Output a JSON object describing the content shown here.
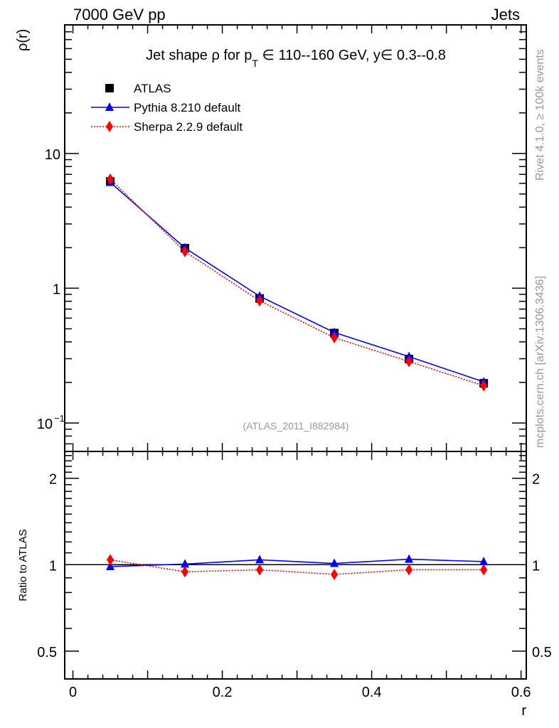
{
  "header": {
    "left": "7000 GeV pp",
    "right": "Jets"
  },
  "side_text": {
    "rivet": "Rivet 4.1.0, ≥ 100k events",
    "mcplots": "mcplots.cern.ch [arXiv:1306.3436]"
  },
  "watermark": "(ATLAS_2011_I882984)",
  "chart_data": [
    {
      "type": "scatter",
      "panel": "main",
      "title": "Jet shape ρ for p_T ∈ 110--160 GeV, y∈ 0.3--0.8",
      "title_parts": {
        "a": "Jet shape ρ for p",
        "sub": "T",
        "b": " ∈ 110--160 GeV, y∈ 0.3--0.8"
      },
      "ylabel": "ρ(r)",
      "xlabel": "r",
      "yscale": "log",
      "xlim": [
        -0.011,
        0.607
      ],
      "ylim": [
        0.0615,
        90
      ],
      "x_ticks": [
        "0",
        "0.2",
        "0.4",
        "0.6"
      ],
      "y_ticks": [
        {
          "value": 10,
          "label": "10"
        },
        {
          "value": 1,
          "label": "1"
        },
        {
          "value": 0.1,
          "label": "10",
          "sup": "−1"
        }
      ],
      "legend_position": "top-left",
      "x": [
        0.05,
        0.15,
        0.25,
        0.35,
        0.45,
        0.55
      ],
      "series": [
        {
          "name": "ATLAS",
          "color": "#000000",
          "marker": "square",
          "values": [
            6.2,
            1.98,
            0.84,
            0.465,
            0.298,
            0.197
          ]
        },
        {
          "name": "Pythia 8.210 default",
          "color": "#0000ff",
          "marker": "triangle",
          "line": "solid",
          "values": [
            6.1,
            1.99,
            0.873,
            0.47,
            0.311,
            0.202
          ]
        },
        {
          "name": "Sherpa 2.2.9 default",
          "color": "#ff0000",
          "marker": "diamond",
          "line": "dotted",
          "values": [
            6.45,
            1.87,
            0.807,
            0.43,
            0.286,
            0.189
          ]
        }
      ]
    },
    {
      "type": "line",
      "panel": "ratio",
      "ylabel": "Ratio to ATLAS",
      "yscale": "log",
      "ylim": [
        0.4,
        2.48
      ],
      "y_ticks": [
        {
          "value": 2,
          "label": "2"
        },
        {
          "value": 1,
          "label": "1"
        },
        {
          "value": 0.5,
          "label": "0.5"
        }
      ],
      "x": [
        0.05,
        0.15,
        0.25,
        0.35,
        0.45,
        0.55
      ],
      "series": [
        {
          "name": "Pythia 8.210 default",
          "color": "#0000ff",
          "marker": "triangle",
          "line": "solid",
          "values": [
            0.985,
            1.005,
            1.04,
            1.01,
            1.045,
            1.025
          ]
        },
        {
          "name": "Sherpa 2.2.9 default",
          "color": "#ff0000",
          "marker": "diamond",
          "line": "dotted",
          "values": [
            1.04,
            0.945,
            0.96,
            0.925,
            0.96,
            0.96
          ]
        }
      ]
    }
  ]
}
